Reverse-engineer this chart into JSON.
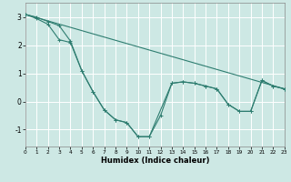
{
  "title": "",
  "xlabel": "Humidex (Indice chaleur)",
  "bg_color": "#cde8e4",
  "grid_color": "#ffffff",
  "line_color": "#2e7d70",
  "xlim": [
    0,
    23
  ],
  "ylim": [
    -1.6,
    3.5
  ],
  "yticks": [
    -1,
    0,
    1,
    2,
    3
  ],
  "xticks": [
    0,
    1,
    2,
    3,
    4,
    5,
    6,
    7,
    8,
    9,
    10,
    11,
    12,
    13,
    14,
    15,
    16,
    17,
    18,
    19,
    20,
    21,
    22,
    23
  ],
  "line1_x": [
    0,
    1,
    2,
    3,
    4,
    5,
    6,
    7,
    8,
    9,
    10,
    11,
    12,
    13,
    14,
    15,
    16,
    17,
    18,
    19,
    20,
    21,
    22,
    23
  ],
  "line1_y": [
    3.1,
    3.0,
    2.85,
    2.7,
    2.15,
    1.1,
    0.35,
    -0.3,
    -0.65,
    -0.75,
    -1.25,
    -1.25,
    -0.5,
    0.65,
    0.7,
    0.65,
    0.55,
    0.45,
    -0.1,
    -0.35,
    -0.35,
    0.75,
    0.55,
    0.45
  ],
  "line2_x": [
    0,
    1,
    2,
    3,
    4,
    5,
    6,
    7,
    8,
    9,
    10,
    11,
    13,
    14,
    15,
    16,
    17,
    18,
    19,
    20,
    21,
    22,
    23
  ],
  "line2_y": [
    3.1,
    2.95,
    2.75,
    2.2,
    2.1,
    1.1,
    0.35,
    -0.3,
    -0.65,
    -0.75,
    -1.25,
    -1.25,
    0.65,
    0.7,
    0.65,
    0.55,
    0.45,
    -0.1,
    -0.35,
    -0.35,
    0.75,
    0.55,
    0.45
  ],
  "line3_x": [
    0,
    23
  ],
  "line3_y": [
    3.1,
    0.45
  ],
  "marker_size": 2.5,
  "lw": 0.8
}
